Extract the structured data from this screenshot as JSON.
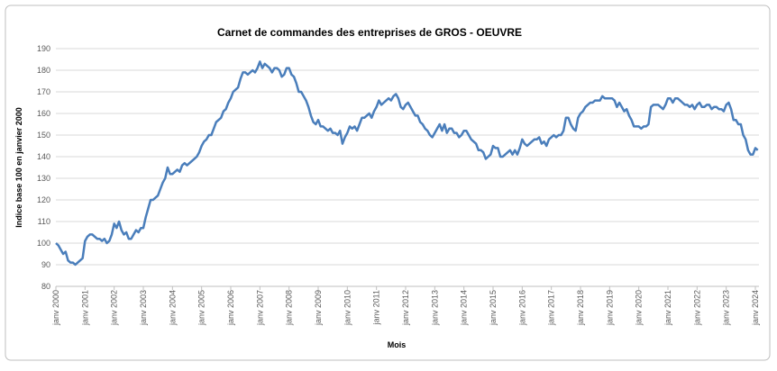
{
  "chart_data": {
    "type": "line",
    "title": "Carnet de commandes des entreprises de GROS - OEUVRE",
    "x_label": "Mois",
    "y_label": "Indice base 100 en janvier 2000",
    "color": "#4a7ebb",
    "grid": true,
    "ylim": [
      80,
      190
    ],
    "yticks": [
      80,
      90,
      100,
      110,
      120,
      130,
      140,
      150,
      160,
      170,
      180,
      190
    ],
    "categories": [
      "janv 2000",
      null,
      null,
      null,
      null,
      null,
      null,
      null,
      null,
      null,
      null,
      null,
      "janv 2001",
      null,
      null,
      null,
      null,
      null,
      null,
      null,
      null,
      null,
      null,
      null,
      "janv 2002",
      null,
      null,
      null,
      null,
      null,
      null,
      null,
      null,
      null,
      null,
      null,
      "janv 2003",
      null,
      null,
      null,
      null,
      null,
      null,
      null,
      null,
      null,
      null,
      null,
      "janv 2004",
      null,
      null,
      null,
      null,
      null,
      null,
      null,
      null,
      null,
      null,
      null,
      "janv 2005",
      null,
      null,
      null,
      null,
      null,
      null,
      null,
      null,
      null,
      null,
      null,
      "janv 2006",
      null,
      null,
      null,
      null,
      null,
      null,
      null,
      null,
      null,
      null,
      null,
      "janv 2007",
      null,
      null,
      null,
      null,
      null,
      null,
      null,
      null,
      null,
      null,
      null,
      "janv 2008",
      null,
      null,
      null,
      null,
      null,
      null,
      null,
      null,
      null,
      null,
      null,
      "janv 2009",
      null,
      null,
      null,
      null,
      null,
      null,
      null,
      null,
      null,
      null,
      null,
      "janv 2010",
      null,
      null,
      null,
      null,
      null,
      null,
      null,
      null,
      null,
      null,
      null,
      "janv 2011",
      null,
      null,
      null,
      null,
      null,
      null,
      null,
      null,
      null,
      null,
      null,
      "janv 2012",
      null,
      null,
      null,
      null,
      null,
      null,
      null,
      null,
      null,
      null,
      null,
      "janv 2013",
      null,
      null,
      null,
      null,
      null,
      null,
      null,
      null,
      null,
      null,
      null,
      "janv 2014",
      null,
      null,
      null,
      null,
      null,
      null,
      null,
      null,
      null,
      null,
      null,
      "janv 2015",
      null,
      null,
      null,
      null,
      null,
      null,
      null,
      null,
      null,
      null,
      null,
      "janv 2016",
      null,
      null,
      null,
      null,
      null,
      null,
      null,
      null,
      null,
      null,
      null,
      "janv 2017",
      null,
      null,
      null,
      null,
      null,
      null,
      null,
      null,
      null,
      null,
      null,
      "janv 2018",
      null,
      null,
      null,
      null,
      null,
      null,
      null,
      null,
      null,
      null,
      null,
      "janv 2019",
      null,
      null,
      null,
      null,
      null,
      null,
      null,
      null,
      null,
      null,
      null,
      "janv 2020",
      null,
      null,
      null,
      null,
      null,
      null,
      null,
      null,
      null,
      null,
      null,
      "janv 2021",
      null,
      null,
      null,
      null,
      null,
      null,
      null,
      null,
      null,
      null,
      null,
      "janv 2022",
      null,
      null,
      null,
      null,
      null,
      null,
      null,
      null,
      null,
      null,
      null,
      "janv 2023",
      null,
      null,
      null,
      null,
      null,
      null,
      null,
      null,
      null,
      null,
      null,
      "janv 2024",
      null
    ],
    "values": [
      100,
      99,
      97,
      95,
      96,
      92,
      91,
      91,
      90,
      91,
      92,
      93,
      101,
      103,
      104,
      104,
      103,
      102,
      102,
      101,
      102,
      100,
      101,
      104,
      109,
      107,
      110,
      106,
      104,
      105,
      102,
      102,
      104,
      106,
      105,
      107,
      107,
      112,
      116,
      120,
      120,
      121,
      122,
      125,
      128,
      130,
      135,
      132,
      132,
      133,
      134,
      133,
      136,
      137,
      136,
      137,
      138,
      139,
      140,
      142,
      145,
      147,
      148,
      150,
      150,
      153,
      156,
      157,
      158,
      161,
      162,
      165,
      167,
      170,
      171,
      172,
      176,
      179,
      179,
      178,
      179,
      180,
      179,
      181,
      184,
      181,
      183,
      182,
      181,
      179,
      181,
      181,
      180,
      177,
      178,
      181,
      181,
      178,
      177,
      174,
      170,
      170,
      168,
      166,
      163,
      159,
      156,
      155,
      157,
      154,
      154,
      153,
      152,
      153,
      151,
      151,
      150,
      152,
      146,
      149,
      151,
      154,
      153,
      154,
      152,
      155,
      158,
      158,
      159,
      160,
      158,
      161,
      163,
      166,
      164,
      165,
      166,
      167,
      166,
      168,
      169,
      167,
      163,
      162,
      164,
      165,
      163,
      161,
      159,
      159,
      156,
      155,
      153,
      152,
      150,
      149,
      151,
      153,
      155,
      152,
      155,
      151,
      153,
      153,
      151,
      151,
      149,
      150,
      152,
      152,
      150,
      148,
      147,
      146,
      143,
      143,
      142,
      139,
      140,
      141,
      145,
      144,
      144,
      140,
      140,
      141,
      142,
      143,
      141,
      143,
      141,
      144,
      148,
      146,
      145,
      146,
      147,
      148,
      148,
      149,
      146,
      147,
      145,
      148,
      149,
      150,
      149,
      150,
      150,
      152,
      158,
      158,
      155,
      153,
      152,
      158,
      160,
      161,
      163,
      164,
      165,
      165,
      166,
      166,
      166,
      168,
      167,
      167,
      167,
      167,
      166,
      163,
      165,
      163,
      161,
      162,
      159,
      157,
      154,
      154,
      154,
      153,
      154,
      154,
      155,
      163,
      164,
      164,
      164,
      163,
      162,
      164,
      167,
      167,
      165,
      167,
      167,
      166,
      165,
      164,
      164,
      163,
      164,
      162,
      164,
      165,
      163,
      163,
      164,
      164,
      162,
      163,
      163,
      162,
      162,
      161,
      164,
      165,
      162,
      157,
      157,
      155,
      155,
      150,
      148,
      143,
      141,
      141,
      144,
      143
    ]
  }
}
